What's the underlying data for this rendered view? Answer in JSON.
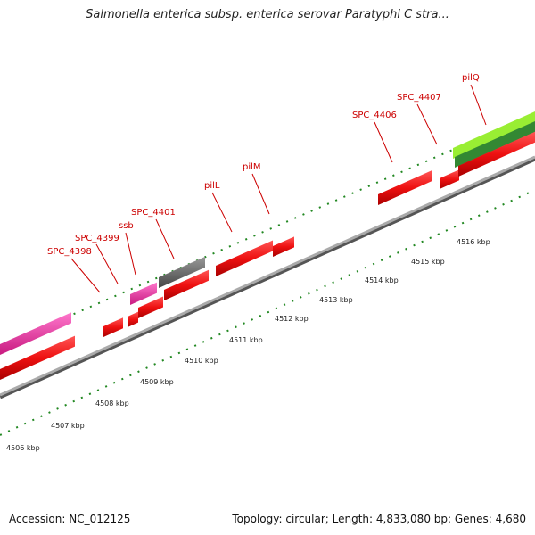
{
  "title": "Salmonella enterica subsp. enterica serovar Paratyphi C stra...",
  "footer": {
    "accession": "Accession: NC_012125",
    "summary": "Topology: circular; Length: 4,833,080 bp; Genes: 4,680"
  },
  "colors": {
    "gene_red": "#ee1111",
    "gene_magenta": "#e0309a",
    "gene_gray": "#666666",
    "gene_green_light": "#99ee33",
    "gene_green_dark": "#338833",
    "backbone": "#888888",
    "tick_green": "#228822",
    "label_red": "#cc0000"
  },
  "gene_labels": [
    "SPC_4398",
    "SPC_4399",
    "ssb",
    "SPC_4401",
    "pilL",
    "pilM",
    "SPC_4406",
    "SPC_4407",
    "pilQ"
  ],
  "scale_labels": [
    "4506 kbp",
    "4507 kbp",
    "4508 kbp",
    "4509 kbp",
    "4510 kbp",
    "4511 kbp",
    "4512 kbp",
    "4513 kbp",
    "4514 kbp",
    "4515 kbp",
    "4516 kbp"
  ]
}
